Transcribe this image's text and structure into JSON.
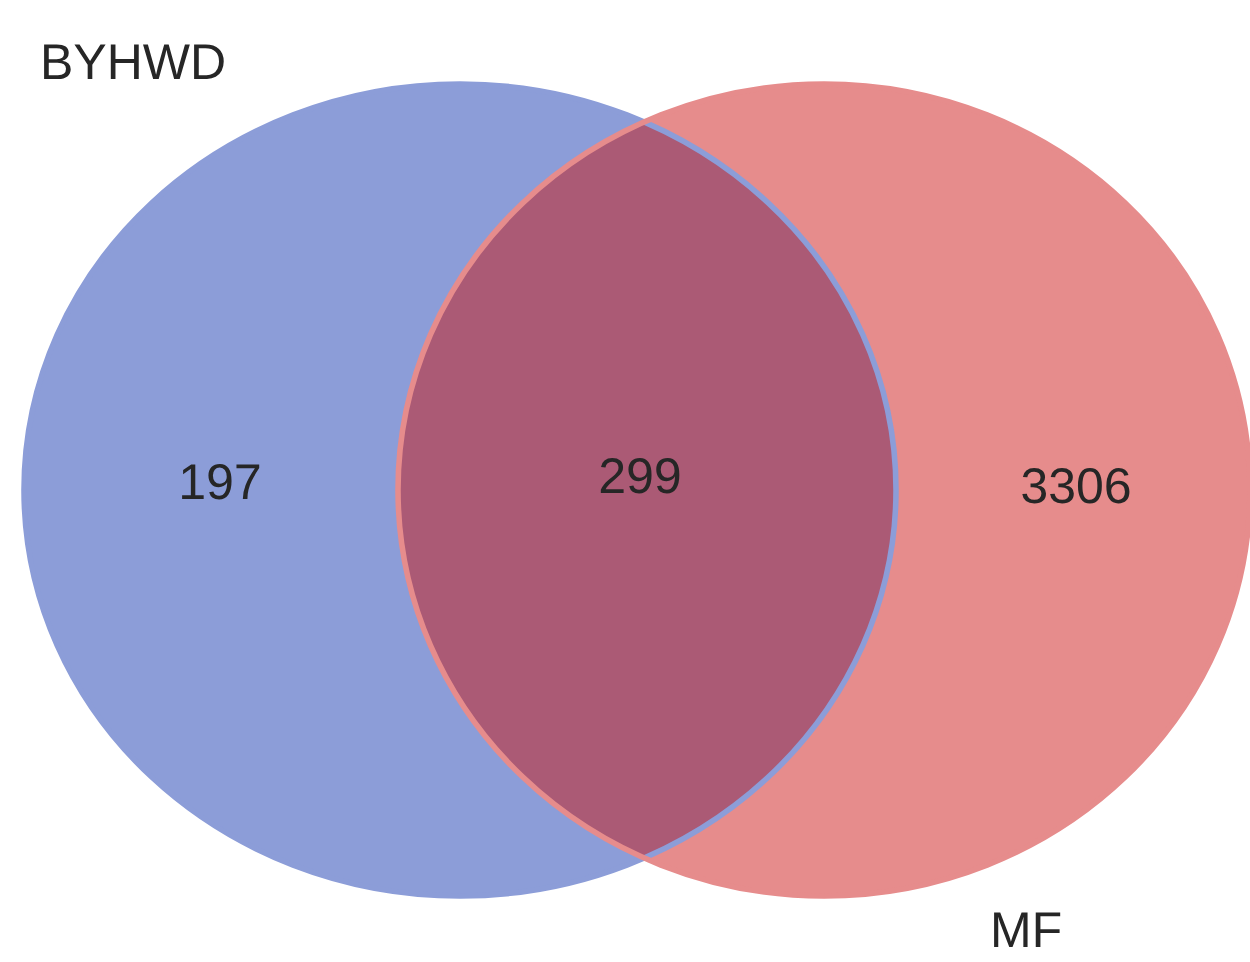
{
  "chart_data": {
    "type": "other",
    "categories": [
      null,
      null,
      null
    ],
    "values": [
      197,
      299,
      3306
    ],
    "data_labels": true,
    "colors": [
      "#8c9dd8",
      "#ab5a75",
      "#e68c8c"
    ],
    "annotations": [
      "BYHWD",
      "MF"
    ]
  }
}
